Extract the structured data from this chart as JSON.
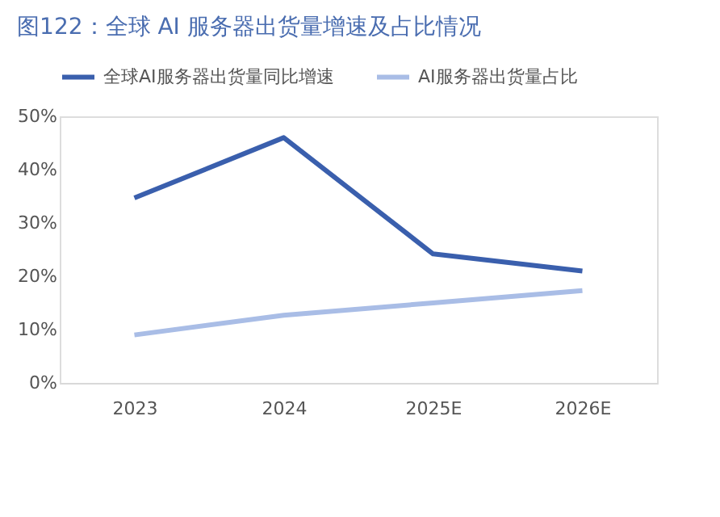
{
  "chart_data": {
    "type": "line",
    "title": "图122：全球 AI 服务器出货量增速及占比情况",
    "categories": [
      "2023",
      "2024",
      "2025E",
      "2026E"
    ],
    "series": [
      {
        "name": "全球AI服务器出货量同比增速",
        "color": "#3a5fad",
        "values": [
          34.7,
          46,
          24.2,
          21
        ]
      },
      {
        "name": "AI服务器出货量占比",
        "color": "#a9bde6",
        "values": [
          9,
          12.7,
          15,
          17.3
        ]
      }
    ],
    "ylim": [
      0,
      50
    ],
    "yticks": [
      {
        "value": 0,
        "label": "0%"
      },
      {
        "value": 10,
        "label": "10%"
      },
      {
        "value": 20,
        "label": "20%"
      },
      {
        "value": 30,
        "label": "30%"
      },
      {
        "value": 40,
        "label": "40%"
      },
      {
        "value": 50,
        "label": "50%"
      }
    ],
    "grid": false,
    "legend": "top",
    "marker": "none",
    "line_style": "solid"
  }
}
